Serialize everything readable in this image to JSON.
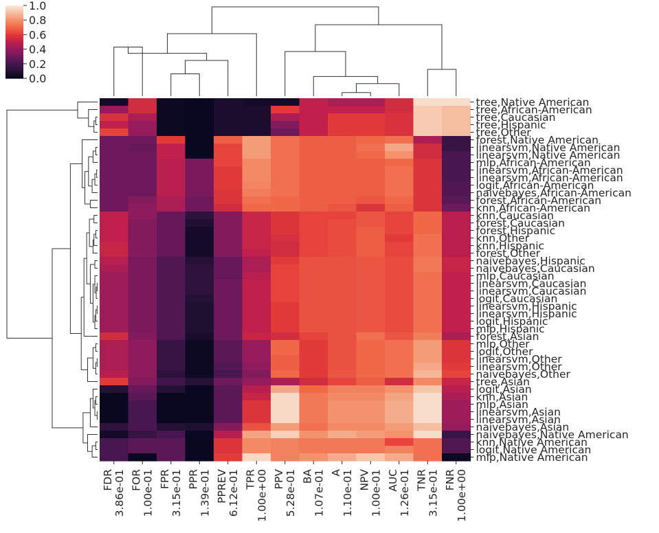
{
  "chart_data": {
    "type": "heatmap",
    "colormap": "rocket",
    "vmin": 0.0,
    "vmax": 1.0,
    "colorbar": {
      "ticks": [
        "1.0",
        "0.8",
        "0.6",
        "0.4",
        "0.2",
        "0.0"
      ],
      "tick_values": [
        1.0,
        0.8,
        0.6,
        0.4,
        0.2,
        0.0
      ],
      "placement": "top-left"
    },
    "columns": [
      "FDR",
      "FOR",
      "FPR",
      "PPR",
      "PPREV",
      "TPR",
      "PPV",
      "BA",
      "A",
      "NPV",
      "AUC",
      "TNR",
      "FNR"
    ],
    "column_labels": [
      [
        "FDR",
        "3.86e-01"
      ],
      [
        "FOR",
        "1.00e-01"
      ],
      [
        "FPR",
        "3.15e-01"
      ],
      [
        "PPR",
        "1.39e-01"
      ],
      [
        "PPREV",
        "6.12e-01"
      ],
      [
        "TPR",
        "1.00e+00"
      ],
      [
        "PPV",
        "5.28e-01"
      ],
      [
        "BA",
        "1.07e-01"
      ],
      [
        "A",
        "1.10e-01"
      ],
      [
        "NPV",
        "1.00e-01"
      ],
      [
        "AUC",
        "1.26e-01"
      ],
      [
        "TNR",
        "3.15e-01"
      ],
      [
        "FNR",
        "1.00e+00"
      ]
    ],
    "rows": [
      "tree,Native American",
      "tree,African-American",
      "tree,Caucasian",
      "tree,Hispanic",
      "tree,Other",
      "forest,Native American",
      "linearsvm,Native American",
      "linearsvm,Native American",
      "mlp,African-American",
      "linearsvm,African-American",
      "linearsvm,African-American",
      "logit,African-American",
      "naivebayes,African-American",
      "forest,African-American",
      "knn,African-American",
      "knn,Caucasian",
      "forest,Caucasian",
      "forest,Hispanic",
      "knn,Other",
      "knn,Hispanic",
      "forest,Other",
      "naivebayes,Hispanic",
      "naivebayes,Caucasian",
      "mlp,Caucasian",
      "linearsvm,Caucasian",
      "linearsvm,Caucasian",
      "logit,Caucasian",
      "linearsvm,Hispanic",
      "linearsvm,Hispanic",
      "logit,Hispanic",
      "mlp,Hispanic",
      "forest,Asian",
      "mlp,Other",
      "logit,Other",
      "linearsvm,Other",
      "linearsvm,Other",
      "naivebayes,Other",
      "tree,Asian",
      "logit,Asian",
      "knn,Asian",
      "mlp,Asian",
      "linearsvm,Asian",
      "linearsvm,Asian",
      "naivebayes,Asian",
      "naivebayes,Native American",
      "knn,Native American",
      "logit,Native American",
      "mlp,Native American"
    ],
    "values": [
      [
        0.05,
        0.55,
        0.03,
        0.02,
        0.07,
        0.05,
        0.05,
        0.5,
        0.45,
        0.45,
        0.55,
        0.97,
        0.97
      ],
      [
        0.4,
        0.55,
        0.03,
        0.02,
        0.07,
        0.07,
        0.6,
        0.5,
        0.5,
        0.5,
        0.55,
        0.93,
        0.9
      ],
      [
        0.57,
        0.45,
        0.03,
        0.02,
        0.07,
        0.07,
        0.45,
        0.5,
        0.6,
        0.6,
        0.57,
        0.93,
        0.9
      ],
      [
        0.5,
        0.4,
        0.03,
        0.02,
        0.07,
        0.07,
        0.35,
        0.5,
        0.6,
        0.6,
        0.57,
        0.93,
        0.9
      ],
      [
        0.62,
        0.4,
        0.03,
        0.02,
        0.07,
        0.07,
        0.3,
        0.5,
        0.6,
        0.6,
        0.57,
        0.93,
        0.9
      ],
      [
        0.3,
        0.3,
        0.6,
        0.02,
        0.68,
        0.82,
        0.72,
        0.68,
        0.68,
        0.7,
        0.72,
        0.45,
        0.15
      ],
      [
        0.3,
        0.28,
        0.5,
        0.02,
        0.62,
        0.82,
        0.72,
        0.68,
        0.68,
        0.72,
        0.85,
        0.55,
        0.15
      ],
      [
        0.3,
        0.3,
        0.5,
        0.02,
        0.62,
        0.82,
        0.72,
        0.68,
        0.68,
        0.7,
        0.8,
        0.55,
        0.2
      ],
      [
        0.3,
        0.3,
        0.48,
        0.33,
        0.62,
        0.78,
        0.72,
        0.68,
        0.68,
        0.68,
        0.7,
        0.58,
        0.2
      ],
      [
        0.3,
        0.3,
        0.48,
        0.33,
        0.6,
        0.78,
        0.72,
        0.68,
        0.68,
        0.68,
        0.72,
        0.58,
        0.2
      ],
      [
        0.3,
        0.3,
        0.48,
        0.33,
        0.6,
        0.78,
        0.72,
        0.68,
        0.68,
        0.68,
        0.72,
        0.58,
        0.2
      ],
      [
        0.3,
        0.3,
        0.48,
        0.33,
        0.6,
        0.77,
        0.72,
        0.68,
        0.68,
        0.68,
        0.72,
        0.58,
        0.22
      ],
      [
        0.3,
        0.3,
        0.48,
        0.33,
        0.58,
        0.75,
        0.72,
        0.68,
        0.68,
        0.68,
        0.72,
        0.58,
        0.22
      ],
      [
        0.3,
        0.35,
        0.45,
        0.3,
        0.58,
        0.72,
        0.7,
        0.68,
        0.68,
        0.66,
        0.7,
        0.58,
        0.25
      ],
      [
        0.3,
        0.38,
        0.45,
        0.3,
        0.55,
        0.7,
        0.7,
        0.68,
        0.66,
        0.58,
        0.68,
        0.58,
        0.3
      ],
      [
        0.5,
        0.38,
        0.28,
        0.12,
        0.35,
        0.52,
        0.58,
        0.62,
        0.62,
        0.66,
        0.62,
        0.7,
        0.48
      ],
      [
        0.5,
        0.35,
        0.28,
        0.08,
        0.35,
        0.52,
        0.58,
        0.62,
        0.64,
        0.66,
        0.62,
        0.7,
        0.48
      ],
      [
        0.5,
        0.35,
        0.28,
        0.05,
        0.35,
        0.52,
        0.58,
        0.62,
        0.64,
        0.68,
        0.62,
        0.7,
        0.48
      ],
      [
        0.5,
        0.35,
        0.28,
        0.05,
        0.35,
        0.52,
        0.56,
        0.62,
        0.64,
        0.68,
        0.6,
        0.72,
        0.48
      ],
      [
        0.52,
        0.35,
        0.28,
        0.05,
        0.35,
        0.52,
        0.55,
        0.62,
        0.64,
        0.68,
        0.62,
        0.72,
        0.48
      ],
      [
        0.52,
        0.35,
        0.28,
        0.05,
        0.35,
        0.5,
        0.55,
        0.62,
        0.64,
        0.68,
        0.62,
        0.72,
        0.48
      ],
      [
        0.48,
        0.33,
        0.22,
        0.1,
        0.28,
        0.45,
        0.6,
        0.65,
        0.65,
        0.66,
        0.64,
        0.74,
        0.52
      ],
      [
        0.45,
        0.33,
        0.22,
        0.12,
        0.28,
        0.45,
        0.62,
        0.65,
        0.65,
        0.66,
        0.64,
        0.74,
        0.52
      ],
      [
        0.42,
        0.33,
        0.22,
        0.12,
        0.28,
        0.48,
        0.62,
        0.65,
        0.65,
        0.66,
        0.64,
        0.72,
        0.5
      ],
      [
        0.42,
        0.33,
        0.22,
        0.12,
        0.3,
        0.5,
        0.62,
        0.65,
        0.65,
        0.66,
        0.64,
        0.72,
        0.5
      ],
      [
        0.42,
        0.33,
        0.22,
        0.12,
        0.3,
        0.5,
        0.62,
        0.65,
        0.65,
        0.66,
        0.64,
        0.72,
        0.5
      ],
      [
        0.42,
        0.33,
        0.22,
        0.1,
        0.3,
        0.5,
        0.62,
        0.65,
        0.65,
        0.66,
        0.64,
        0.72,
        0.5
      ],
      [
        0.42,
        0.33,
        0.22,
        0.08,
        0.3,
        0.5,
        0.6,
        0.65,
        0.65,
        0.66,
        0.64,
        0.72,
        0.5
      ],
      [
        0.42,
        0.33,
        0.22,
        0.08,
        0.3,
        0.5,
        0.6,
        0.65,
        0.65,
        0.66,
        0.64,
        0.72,
        0.5
      ],
      [
        0.42,
        0.33,
        0.22,
        0.08,
        0.3,
        0.5,
        0.6,
        0.65,
        0.65,
        0.66,
        0.64,
        0.72,
        0.5
      ],
      [
        0.42,
        0.33,
        0.22,
        0.08,
        0.3,
        0.5,
        0.6,
        0.65,
        0.65,
        0.66,
        0.64,
        0.72,
        0.5
      ],
      [
        0.55,
        0.35,
        0.22,
        0.06,
        0.3,
        0.52,
        0.55,
        0.62,
        0.65,
        0.72,
        0.66,
        0.75,
        0.45
      ],
      [
        0.45,
        0.38,
        0.15,
        0.03,
        0.25,
        0.4,
        0.7,
        0.6,
        0.65,
        0.7,
        0.72,
        0.82,
        0.58
      ],
      [
        0.45,
        0.38,
        0.15,
        0.03,
        0.25,
        0.4,
        0.7,
        0.6,
        0.65,
        0.7,
        0.72,
        0.82,
        0.58
      ],
      [
        0.45,
        0.38,
        0.15,
        0.03,
        0.25,
        0.4,
        0.68,
        0.6,
        0.65,
        0.7,
        0.72,
        0.82,
        0.58
      ],
      [
        0.45,
        0.38,
        0.15,
        0.03,
        0.22,
        0.38,
        0.68,
        0.6,
        0.65,
        0.7,
        0.72,
        0.85,
        0.6
      ],
      [
        0.48,
        0.38,
        0.12,
        0.03,
        0.2,
        0.35,
        0.7,
        0.6,
        0.66,
        0.7,
        0.72,
        0.88,
        0.62
      ],
      [
        0.6,
        0.35,
        0.18,
        0.1,
        0.3,
        0.4,
        0.45,
        0.55,
        0.62,
        0.68,
        0.55,
        0.78,
        0.52
      ],
      [
        0.1,
        0.28,
        0.1,
        0.02,
        0.25,
        0.48,
        0.85,
        0.7,
        0.76,
        0.76,
        0.8,
        0.92,
        0.48
      ],
      [
        0.02,
        0.25,
        0.02,
        0.02,
        0.25,
        0.52,
        0.96,
        0.74,
        0.78,
        0.78,
        0.84,
        0.97,
        0.45
      ],
      [
        0.02,
        0.2,
        0.02,
        0.02,
        0.25,
        0.58,
        0.96,
        0.74,
        0.8,
        0.8,
        0.86,
        0.97,
        0.42
      ],
      [
        0.02,
        0.2,
        0.02,
        0.02,
        0.25,
        0.58,
        0.96,
        0.74,
        0.8,
        0.8,
        0.86,
        0.97,
        0.42
      ],
      [
        0.02,
        0.2,
        0.02,
        0.02,
        0.25,
        0.58,
        0.96,
        0.74,
        0.8,
        0.8,
        0.86,
        0.97,
        0.42
      ],
      [
        0.12,
        0.2,
        0.1,
        0.08,
        0.35,
        0.65,
        0.82,
        0.72,
        0.78,
        0.78,
        0.82,
        0.9,
        0.4
      ],
      [
        0.05,
        0.15,
        0.2,
        0.02,
        0.48,
        0.84,
        0.94,
        0.8,
        0.86,
        0.82,
        0.8,
        0.97,
        0.16
      ],
      [
        0.2,
        0.25,
        0.25,
        0.02,
        0.58,
        0.78,
        0.76,
        0.74,
        0.74,
        0.74,
        0.62,
        0.72,
        0.22
      ],
      [
        0.2,
        0.25,
        0.25,
        0.02,
        0.58,
        0.78,
        0.76,
        0.74,
        0.74,
        0.74,
        0.76,
        0.72,
        0.22
      ],
      [
        0.2,
        0.02,
        0.25,
        0.02,
        0.6,
        0.96,
        0.76,
        0.8,
        0.86,
        0.92,
        0.86,
        0.72,
        0.03
      ]
    ],
    "row_dendrogram": true,
    "column_dendrogram": true,
    "grid": false
  }
}
